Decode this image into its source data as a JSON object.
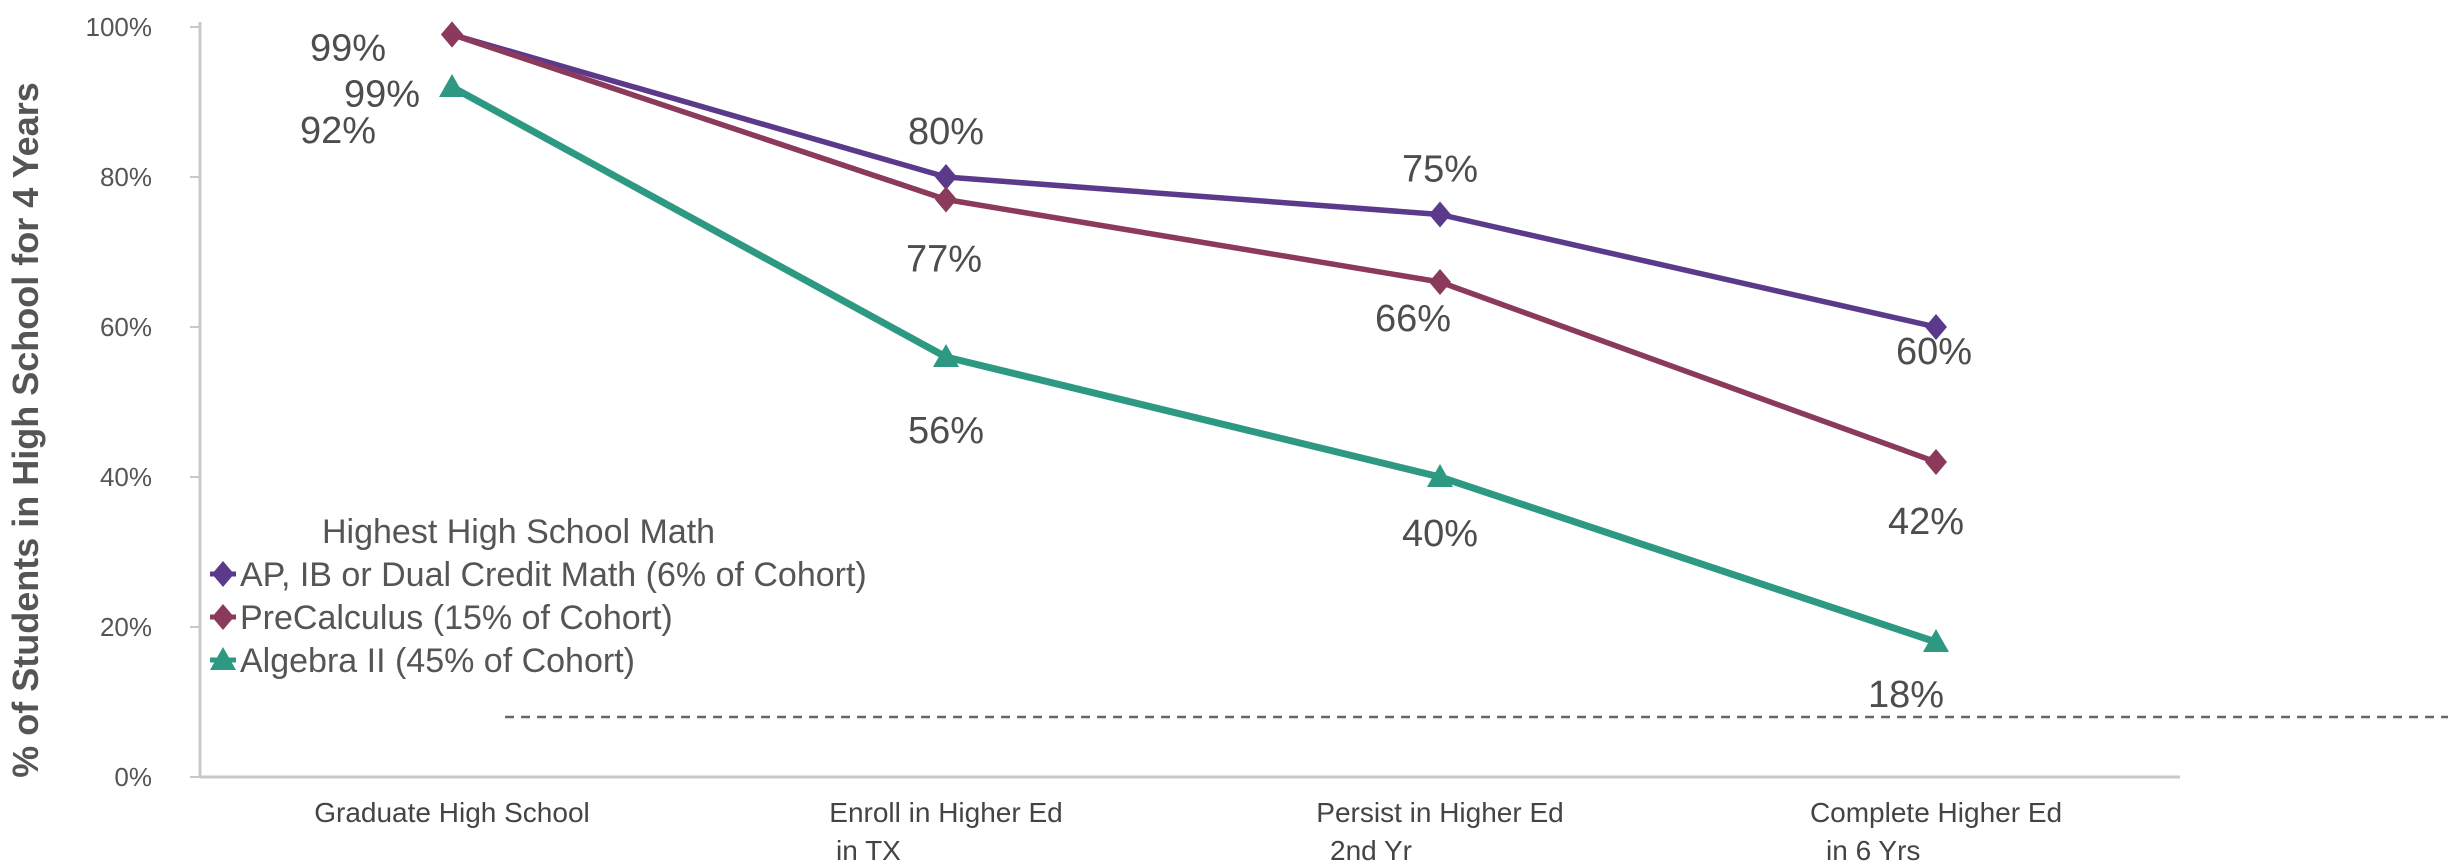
{
  "chart_data": {
    "type": "line",
    "ylabel": "% of Students in High School for 4 Years",
    "xlabel": "",
    "ylim": [
      0,
      100
    ],
    "yticks": [
      "0%",
      "20%",
      "40%",
      "60%",
      "80%",
      "100%"
    ],
    "categories": [
      [
        "Graduate High School"
      ],
      [
        "Enroll in Higher Ed",
        "in TX"
      ],
      [
        "Persist in Higher Ed",
        "2nd Yr"
      ],
      [
        "Complete Higher Ed",
        "in 6 Yrs"
      ]
    ],
    "legend_title": "Highest High School Math",
    "legend_position": "left",
    "reference_line": {
      "style": "dashed",
      "value": 8
    },
    "series": [
      {
        "name": "AP, IB or Dual Credit Math (6% of Cohort)",
        "values": [
          99,
          80,
          75,
          60
        ],
        "labels": [
          "99%",
          "80%",
          "75%",
          "60%"
        ],
        "color": "#5b3a8c",
        "marker": "diamond"
      },
      {
        "name": "PreCalculus (15% of Cohort)",
        "values": [
          99,
          77,
          66,
          42
        ],
        "labels": [
          "99%",
          "77%",
          "66%",
          "42%"
        ],
        "color": "#8b3a5c",
        "marker": "diamond"
      },
      {
        "name": "Algebra II (45% of Cohort)",
        "values": [
          92,
          56,
          40,
          18
        ],
        "labels": [
          "92%",
          "56%",
          "40%",
          "18%"
        ],
        "color": "#2e9982",
        "marker": "triangle"
      }
    ]
  }
}
